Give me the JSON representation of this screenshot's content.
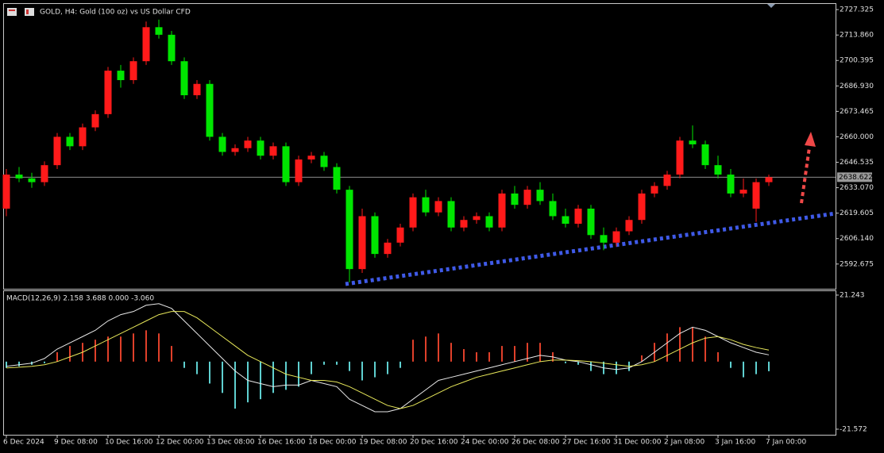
{
  "chart_data": {
    "type": "candlestick",
    "title": "GOLD, H4:  Gold (100 oz) vs US Dollar CFD",
    "up_color": "#ff1a1a",
    "down_color": "#00e600",
    "grid": false,
    "ylim": [
      2580,
      2730.3
    ],
    "yticks": [
      2727.325,
      {
        "value": 2713.86,
        "label": "2713.860"
      },
      2700.395,
      {
        "value": 2686.93,
        "label": "2686.930"
      },
      2673.465,
      {
        "value": 2660,
        "label": "2660.000"
      },
      2646.535,
      {
        "value": 2633.07,
        "label": "2633.070"
      },
      2619.605,
      {
        "value": 2606.14,
        "label": "2606.140"
      },
      2592.675
    ],
    "current_price": 2638.622,
    "categories": [
      "6 Dec 2024",
      null,
      null,
      null,
      "9 Dec 08:00",
      null,
      null,
      null,
      "10 Dec 16:00",
      null,
      null,
      null,
      "12 Dec 00:00",
      null,
      null,
      null,
      "13 Dec 08:00",
      null,
      null,
      null,
      "16 Dec 16:00",
      null,
      null,
      null,
      "18 Dec 00:00",
      null,
      null,
      null,
      "19 Dec 08:00",
      null,
      null,
      null,
      "20 Dec 16:00",
      null,
      null,
      null,
      "24 Dec 00:00",
      null,
      null,
      null,
      "26 Dec 08:00",
      null,
      null,
      null,
      "27 Dec 16:00",
      null,
      null,
      null,
      "31 Dec 00:00",
      null,
      null,
      null,
      "2 Jan 08:00",
      null,
      null,
      null,
      "3 Jan 16:00",
      null,
      null,
      null,
      "7 Jan 00:00"
    ],
    "series": {
      "open": [
        2622,
        2640,
        2638,
        2636,
        2645,
        2660,
        2655,
        2665,
        2672,
        2695,
        2690,
        2700,
        2718,
        2714,
        2700,
        2682,
        2688,
        2660,
        2652,
        2654,
        2658,
        2650,
        2655,
        2636,
        2648,
        2650,
        2644,
        2632,
        2590,
        2618,
        2598,
        2604,
        2612,
        2628,
        2620,
        2626,
        2612,
        2616,
        2618,
        2612,
        2630,
        2624,
        2632,
        2626,
        2618,
        2614,
        2622,
        2608,
        2604,
        2610,
        2616,
        2630,
        2634,
        2640,
        2658,
        2656,
        2645,
        2640,
        2630,
        2622,
        2636
      ],
      "high": [
        2643,
        2644,
        2641,
        2647,
        2662,
        2662,
        2667,
        2674,
        2697,
        2698,
        2702,
        2721,
        2722,
        2716,
        2702,
        2690,
        2690,
        2662,
        2656,
        2660,
        2660,
        2657,
        2657,
        2650,
        2652,
        2652,
        2646,
        2634,
        2622,
        2620,
        2606,
        2614,
        2630,
        2632,
        2628,
        2628,
        2618,
        2620,
        2620,
        2632,
        2634,
        2634,
        2636,
        2630,
        2622,
        2624,
        2624,
        2612,
        2612,
        2618,
        2632,
        2636,
        2642,
        2660,
        2666,
        2658,
        2650,
        2643,
        2638,
        2638,
        2640
      ],
      "low": [
        2618,
        2636,
        2633,
        2634,
        2643,
        2653,
        2653,
        2663,
        2670,
        2686,
        2688,
        2698,
        2712,
        2698,
        2680,
        2680,
        2658,
        2650,
        2650,
        2652,
        2648,
        2648,
        2634,
        2634,
        2646,
        2642,
        2630,
        2583,
        2588,
        2596,
        2596,
        2602,
        2610,
        2618,
        2618,
        2610,
        2610,
        2614,
        2610,
        2610,
        2622,
        2622,
        2624,
        2616,
        2612,
        2612,
        2606,
        2600,
        2602,
        2608,
        2614,
        2628,
        2632,
        2638,
        2654,
        2643,
        2638,
        2628,
        2628,
        2615,
        2634
      ],
      "close": [
        2640,
        2638,
        2636,
        2645,
        2660,
        2655,
        2665,
        2672,
        2695,
        2690,
        2700,
        2718,
        2714,
        2700,
        2682,
        2688,
        2660,
        2652,
        2654,
        2658,
        2650,
        2655,
        2636,
        2648,
        2650,
        2644,
        2632,
        2590,
        2618,
        2598,
        2604,
        2612,
        2628,
        2620,
        2626,
        2612,
        2616,
        2618,
        2612,
        2630,
        2624,
        2632,
        2626,
        2618,
        2614,
        2622,
        2608,
        2604,
        2610,
        2616,
        2630,
        2634,
        2640,
        2658,
        2656,
        2645,
        2640,
        2630,
        2632,
        2636,
        2638.622
      ]
    },
    "macd": {
      "label": "MACD(12,26,9) 2.158 3.688 0.000 -3.060",
      "ylim": [
        -23.35,
        22.5
      ],
      "yticks": [
        21.243,
        -21.572
      ],
      "positive_color": "#e0402a",
      "negative_color": "#5fd0d0",
      "main_color": "#e8e8e8",
      "signal_color": "#e8e85a",
      "histogram": [
        -2,
        -1.5,
        -1,
        -0.5,
        3,
        5,
        6,
        7,
        8,
        8,
        9,
        10,
        9,
        5,
        -2,
        -4,
        -7,
        -10,
        -15,
        -13,
        -12,
        -10,
        -9,
        -8,
        -4,
        -1,
        -1,
        -3,
        -6,
        -5,
        -4,
        -2,
        7,
        8,
        9,
        6,
        4,
        3,
        3,
        5,
        5,
        6,
        6,
        3,
        -0.5,
        -1,
        -3,
        -4,
        -4,
        -3,
        2,
        6,
        9,
        11,
        11,
        8,
        3,
        -2,
        -5,
        -4,
        -3.06
      ],
      "main_line": [
        -1.5,
        -1,
        -0.5,
        1,
        4,
        6,
        8,
        10,
        13,
        15,
        16,
        18,
        18.5,
        17,
        13,
        9,
        5,
        1,
        -3,
        -6,
        -7,
        -8,
        -7.5,
        -7.5,
        -6,
        -7,
        -8,
        -12,
        -14,
        -16,
        -16,
        -15,
        -12,
        -9,
        -6,
        -5,
        -4,
        -3,
        -2,
        -1,
        0,
        1,
        2,
        1.5,
        0.5,
        0,
        -1,
        -2,
        -2.5,
        -2,
        0,
        3,
        6,
        9,
        11,
        10,
        8,
        6,
        4.5,
        3,
        2.158
      ],
      "signal_line": [
        -2,
        -1.8,
        -1.5,
        -1,
        0,
        1.5,
        3,
        5,
        7,
        9,
        11,
        13,
        15,
        16,
        16,
        14,
        11,
        8,
        5,
        2,
        0,
        -2,
        -4,
        -5,
        -6,
        -6,
        -6.5,
        -8,
        -10,
        -12,
        -14,
        -15,
        -14,
        -12,
        -10,
        -8,
        -6.5,
        -5,
        -4,
        -3,
        -2,
        -1,
        0,
        0.5,
        0.5,
        0.3,
        0,
        -0.5,
        -1,
        -1.5,
        -1,
        0,
        2,
        4,
        6,
        7.5,
        8,
        7,
        5.5,
        4.5,
        3.688
      ]
    }
  }
}
